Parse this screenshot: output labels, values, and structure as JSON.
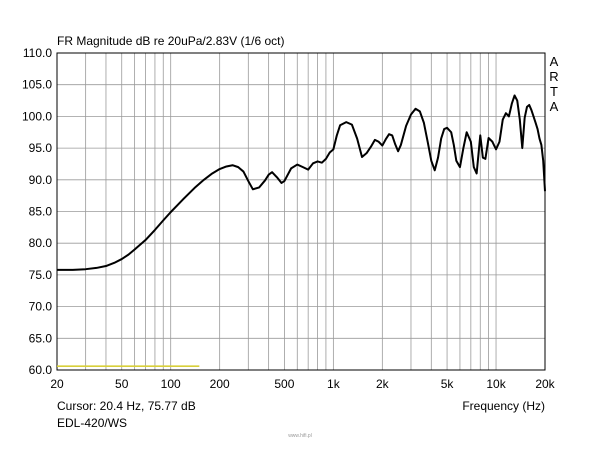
{
  "chart_data": {
    "type": "line",
    "title": "FR Magnitude dB re 20uPa/2.83V (1/6 oct)",
    "xlabel": "Frequency (Hz)",
    "ylabel": "",
    "x_scale": "log",
    "xlim": [
      20,
      20000
    ],
    "ylim": [
      60,
      110
    ],
    "grid": true,
    "x_tick_labels": [
      {
        "value": 20,
        "label": "20"
      },
      {
        "value": 50,
        "label": "50"
      },
      {
        "value": 100,
        "label": "100"
      },
      {
        "value": 200,
        "label": "200"
      },
      {
        "value": 500,
        "label": "500"
      },
      {
        "value": 1000,
        "label": "1k"
      },
      {
        "value": 2000,
        "label": "2k"
      },
      {
        "value": 5000,
        "label": "5k"
      },
      {
        "value": 10000,
        "label": "10k"
      },
      {
        "value": 20000,
        "label": "20k"
      }
    ],
    "y_tick_labels": [
      "60.0",
      "65.0",
      "70.0",
      "75.0",
      "80.0",
      "85.0",
      "90.0",
      "95.0",
      "100.0",
      "105.0",
      "110.0"
    ],
    "series": [
      {
        "color": "#000000",
        "x": [
          20,
          25,
          30,
          35,
          40,
          45,
          50,
          55,
          60,
          70,
          80,
          90,
          100,
          110,
          120,
          140,
          160,
          180,
          200,
          220,
          240,
          260,
          280,
          300,
          320,
          350,
          380,
          400,
          420,
          450,
          480,
          500,
          550,
          600,
          650,
          700,
          750,
          800,
          850,
          900,
          950,
          1000,
          1050,
          1100,
          1200,
          1300,
          1400,
          1500,
          1600,
          1700,
          1800,
          1900,
          2000,
          2100,
          2200,
          2300,
          2400,
          2500,
          2600,
          2800,
          3000,
          3200,
          3400,
          3600,
          3800,
          4000,
          4200,
          4400,
          4600,
          4800,
          5000,
          5300,
          5500,
          5700,
          6000,
          6300,
          6600,
          7000,
          7300,
          7600,
          8000,
          8300,
          8600,
          9000,
          9500,
          10000,
          10500,
          11000,
          11500,
          12000,
          12500,
          13000,
          13500,
          14000,
          14500,
          15000,
          15500,
          16000,
          16500,
          17000,
          17500,
          18000,
          18500,
          19000,
          19500,
          20000
        ],
        "values": [
          75.8,
          75.8,
          75.9,
          76.1,
          76.4,
          76.9,
          77.5,
          78.2,
          79.0,
          80.5,
          82.1,
          83.6,
          84.9,
          86.0,
          87.0,
          88.7,
          90.0,
          91.0,
          91.7,
          92.1,
          92.3,
          92.0,
          91.3,
          89.8,
          88.5,
          88.8,
          89.9,
          90.8,
          91.2,
          90.4,
          89.5,
          89.8,
          91.8,
          92.4,
          92.0,
          91.6,
          92.6,
          92.9,
          92.7,
          93.3,
          94.3,
          94.8,
          97.0,
          98.6,
          99.1,
          98.7,
          96.5,
          93.6,
          94.2,
          95.2,
          96.3,
          96.0,
          95.4,
          96.4,
          97.2,
          97.0,
          95.6,
          94.5,
          95.5,
          98.5,
          100.3,
          101.2,
          100.8,
          99.0,
          96.0,
          93.0,
          91.5,
          93.5,
          96.5,
          98.0,
          98.2,
          97.5,
          95.5,
          93.0,
          92.0,
          95.0,
          97.5,
          96.0,
          92.0,
          91.0,
          97.0,
          93.5,
          93.3,
          96.6,
          96.0,
          94.8,
          96.0,
          99.5,
          100.5,
          100.0,
          102.0,
          103.3,
          102.5,
          99.5,
          95.0,
          99.8,
          101.5,
          101.8,
          101.0,
          100.0,
          99.0,
          98.0,
          96.5,
          95.5,
          93.0,
          88.2
        ]
      },
      {
        "color": "#d8cf3a",
        "x": [
          20,
          150
        ],
        "values": [
          60.6,
          60.6
        ]
      }
    ],
    "annotations": [
      "A",
      "R",
      "T",
      "A"
    ]
  },
  "cursor_text": "Cursor: 20.4 Hz, 75.77 dB",
  "model_label": "EDL-420/WS",
  "watermark": "www.hifi.pl"
}
